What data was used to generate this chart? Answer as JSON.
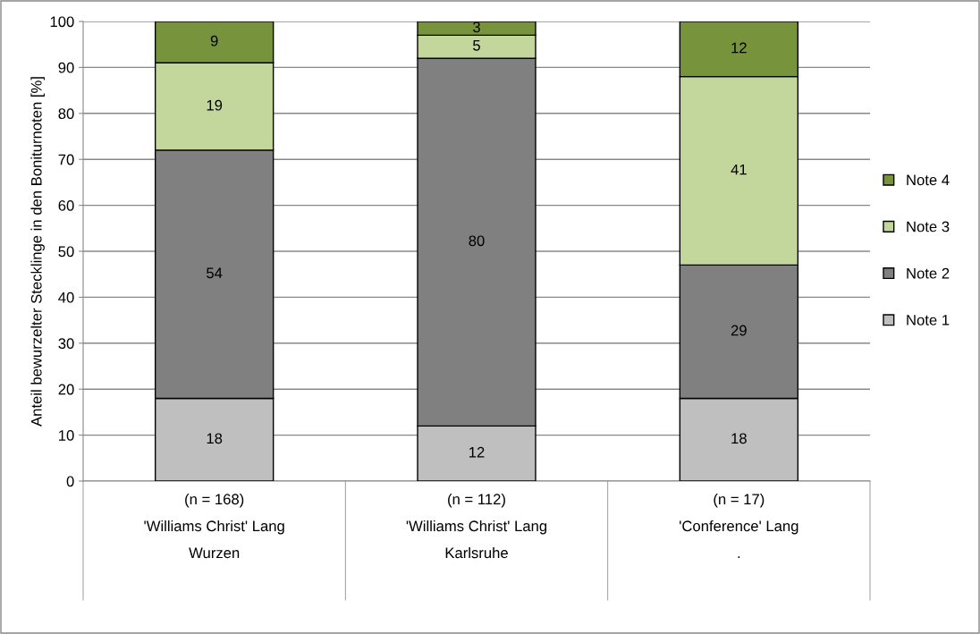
{
  "chart_data": {
    "type": "bar",
    "stacked": true,
    "ylabel": "Anteil bewurzelter Stecklinge in den Boniturnoten [%]",
    "categories": [
      "(n = 168)\n'Williams Christ' Lang\nWurzen",
      "(n = 112)\n'Williams Christ' Lang\nKarlsruhe",
      "(n = 17)\n'Conference' Lang\n."
    ],
    "series": [
      {
        "name": "Note 1",
        "color": "#bfbfbf",
        "values": [
          18,
          12,
          18
        ]
      },
      {
        "name": "Note 2",
        "color": "#808080",
        "values": [
          54,
          80,
          29
        ]
      },
      {
        "name": "Note 3",
        "color": "#c3d69b",
        "values": [
          19,
          5,
          41
        ]
      },
      {
        "name": "Note 4",
        "color": "#77933c",
        "values": [
          9,
          3,
          12
        ]
      }
    ],
    "ylim": [
      0,
      100
    ],
    "yticks": [
      0,
      10,
      20,
      30,
      40,
      50,
      60,
      70,
      80,
      90,
      100
    ],
    "grid": "y",
    "legend": "right",
    "data_labels": true
  }
}
